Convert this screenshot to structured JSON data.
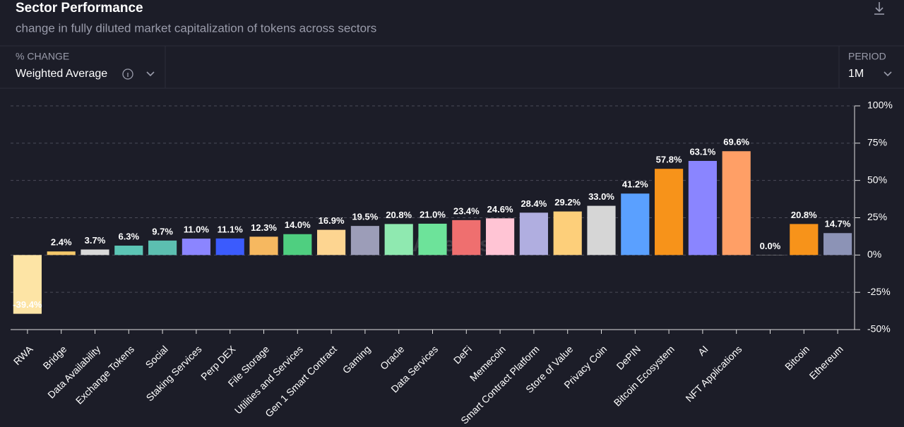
{
  "header": {
    "title": "Sector Performance",
    "subtitle": "change in fully diluted market capitalization of tokens across sectors"
  },
  "controls": {
    "metric_label": "% CHANGE",
    "metric_value": "Weighted Average",
    "period_label": "PERIOD",
    "period_value": "1M"
  },
  "watermark": "Artemis",
  "chart_data": {
    "type": "bar",
    "categories": [
      "RWA",
      "Bridge",
      "Data Availability",
      "Exchange Tokens",
      "Social",
      "Staking Services",
      "Perp DEX",
      "File Storage",
      "Utilities and Services",
      "Gen 1 Smart Contract",
      "Gaming",
      "Oracle",
      "Data Services",
      "DeFi",
      "Memecoin",
      "Smart Contract Platform",
      "Store of Value",
      "Privacy Coin",
      "DePIN",
      "Bitcoin Ecosystem",
      "AI",
      "NFT Applications",
      null,
      "Bitcoin",
      "Ethereum"
    ],
    "values": [
      -39.4,
      2.4,
      3.7,
      6.3,
      9.7,
      11.0,
      11.1,
      12.3,
      14.0,
      16.9,
      19.5,
      20.8,
      21.0,
      23.4,
      24.6,
      28.4,
      29.2,
      33.0,
      41.2,
      57.8,
      63.1,
      69.6,
      0.0,
      20.8,
      14.7
    ],
    "value_labels": [
      "-39.4%",
      "2.4%",
      "3.7%",
      "6.3%",
      "9.7%",
      "11.0%",
      "11.1%",
      "12.3%",
      "14.0%",
      "16.9%",
      "19.5%",
      "20.8%",
      "21.0%",
      "23.4%",
      "24.6%",
      "28.4%",
      "29.2%",
      "33.0%",
      "41.2%",
      "57.8%",
      "63.1%",
      "69.6%",
      "0.0%",
      "20.8%",
      "14.7%"
    ],
    "colors": [
      "#fde4a5",
      "#f5c86a",
      "#d9d9d9",
      "#5cc5b5",
      "#5cbfb0",
      "#8b85ff",
      "#3b5bfd",
      "#f6b860",
      "#4fcf80",
      "#fdd591",
      "#9c9db8",
      "#8fe9b0",
      "#6de39a",
      "#ef6f6f",
      "#ffc4d4",
      "#b0aee0",
      "#fdcf7a",
      "#d6d6d6",
      "#5aa0ff",
      "#f7931a",
      "#8a85ff",
      "#ff9f66",
      "#888888",
      "#f7931a",
      "#8c93b6"
    ],
    "ylim": [
      -50,
      100
    ],
    "yticks": [
      {
        "value": -50,
        "label": "-50%"
      },
      {
        "value": -25,
        "label": "-25%"
      },
      {
        "value": 0,
        "label": "0%"
      },
      {
        "value": 25,
        "label": "25%"
      },
      {
        "value": 50,
        "label": "50%"
      },
      {
        "value": 75,
        "label": "75%"
      },
      {
        "value": 100,
        "label": "100%"
      }
    ],
    "grid": true
  }
}
